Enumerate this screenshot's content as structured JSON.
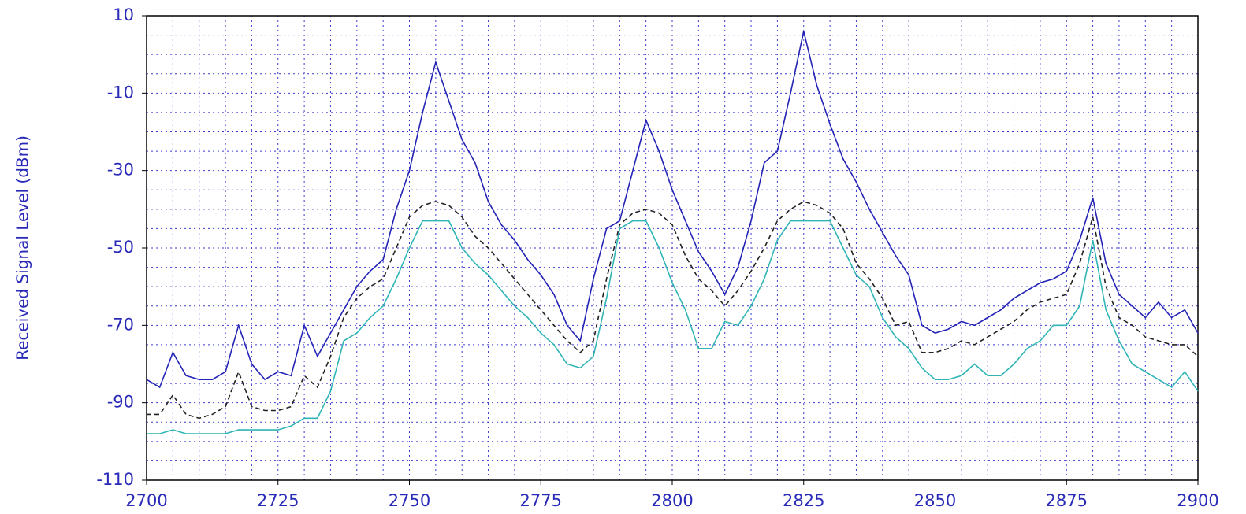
{
  "chart_data": {
    "type": "line",
    "y_label": "Received Signal Level (dBm)",
    "x": [
      2700,
      2702.5,
      2705,
      2707.5,
      2710,
      2712.5,
      2715,
      2717.5,
      2720,
      2722.5,
      2725,
      2727.5,
      2730,
      2732.5,
      2735,
      2737.5,
      2740,
      2742.5,
      2745,
      2747.5,
      2750,
      2752.5,
      2755,
      2757.5,
      2760,
      2762.5,
      2765,
      2767.5,
      2770,
      2772.5,
      2775,
      2777.5,
      2780,
      2782.5,
      2785,
      2787.5,
      2790,
      2792.5,
      2795,
      2797.5,
      2800,
      2802.5,
      2805,
      2807.5,
      2810,
      2812.5,
      2815,
      2817.5,
      2820,
      2822.5,
      2825,
      2827.5,
      2830,
      2832.5,
      2835,
      2837.5,
      2840,
      2842.5,
      2845,
      2847.5,
      2850,
      2852.5,
      2855,
      2857.5,
      2860,
      2862.5,
      2865,
      2867.5,
      2870,
      2872.5,
      2875,
      2877.5,
      2880,
      2882.5,
      2885,
      2887.5,
      2890,
      2892.5,
      2895,
      2897.5,
      2900
    ],
    "series": [
      {
        "color": "#2323b5",
        "dash": "solid",
        "values": [
          -84,
          -86,
          -77,
          -83,
          -84,
          -84,
          -82,
          -70,
          -80,
          -84,
          -82,
          -83,
          -70,
          -78,
          -72,
          -66,
          -60,
          -56,
          -53,
          -40,
          -30,
          -15,
          -2,
          -12,
          -22,
          -28,
          -38,
          -44,
          -48,
          -53,
          -57,
          -62,
          -70,
          -74,
          -58,
          -45,
          -43,
          -30,
          -17,
          -25,
          -35,
          -43,
          -51,
          -56,
          -62,
          -55,
          -43,
          -28,
          -25,
          -10,
          6,
          -8,
          -18,
          -27,
          -33,
          -40,
          -46,
          -52,
          -57,
          -70,
          -72,
          -71,
          -69,
          -70,
          -68,
          -66,
          -63,
          -61,
          -59,
          -58,
          -56,
          -48,
          -37,
          -54,
          -62,
          -65,
          -68,
          -64,
          -68,
          -66,
          -72
        ]
      },
      {
        "color": "#222222",
        "dash": "dashed",
        "values": [
          -93,
          -93,
          -88,
          -93,
          -94,
          -93,
          -91,
          -82,
          -91,
          -92,
          -92,
          -91,
          -83,
          -86,
          -78,
          -68,
          -63,
          -60,
          -58,
          -50,
          -42,
          -39,
          -38,
          -39,
          -42,
          -47,
          -50,
          -54,
          -58,
          -62,
          -66,
          -70,
          -74,
          -77,
          -74,
          -58,
          -44,
          -41,
          -40,
          -41,
          -44,
          -52,
          -58,
          -61,
          -65,
          -61,
          -56,
          -50,
          -43,
          -40,
          -38,
          -39,
          -41,
          -45,
          -54,
          -58,
          -63,
          -70,
          -69,
          -77,
          -77,
          -76,
          -74,
          -75,
          -73,
          -71,
          -69,
          -66,
          -64,
          -63,
          -62,
          -54,
          -42,
          -60,
          -68,
          -70,
          -73,
          -74,
          -75,
          -75,
          -78
        ]
      },
      {
        "color": "#2fb5b5",
        "dash": "solid",
        "values": [
          -98,
          -98,
          -97,
          -98,
          -98,
          -98,
          -98,
          -97,
          -97,
          -97,
          -97,
          -96,
          -94,
          -94,
          -87,
          -74,
          -72,
          -68,
          -65,
          -58,
          -50,
          -43,
          -43,
          -43,
          -50,
          -54,
          -57,
          -61,
          -65,
          -68,
          -72,
          -75,
          -80,
          -81,
          -78,
          -63,
          -45,
          -43,
          -43,
          -50,
          -59,
          -66,
          -76,
          -76,
          -69,
          -70,
          -65,
          -58,
          -48,
          -43,
          -43,
          -43,
          -43,
          -50,
          -57,
          -60,
          -68,
          -73,
          -76,
          -81,
          -84,
          -84,
          -83,
          -80,
          -83,
          -83,
          -80,
          -76,
          -74,
          -70,
          -70,
          -65,
          -48,
          -66,
          -74,
          -80,
          -82,
          -84,
          -86,
          -82,
          -87
        ]
      }
    ],
    "xlim": [
      2700,
      2900
    ],
    "xticks": [
      2700,
      2725,
      2750,
      2775,
      2800,
      2825,
      2850,
      2875,
      2900
    ],
    "ylim": [
      -110,
      10
    ],
    "yticks": [
      10,
      -10,
      -30,
      -50,
      -70,
      -90,
      -110
    ],
    "grid": true,
    "grid_color": "#3a3ad0"
  }
}
